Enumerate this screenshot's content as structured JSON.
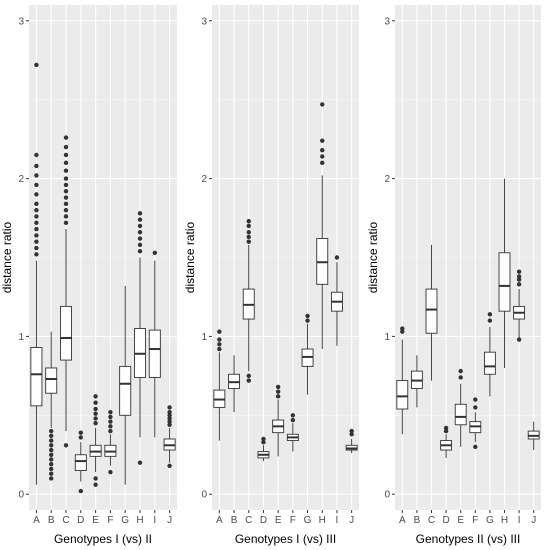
{
  "colors": {
    "panel_bg": "#ebebeb",
    "grid_major": "#ffffff",
    "grid_minor": "#f5f5f5",
    "box_fill": "#ffffff",
    "box_line": "#333333",
    "outlier": "#333333",
    "tick_text": "#4d4d4d"
  },
  "chart_data": [
    {
      "type": "boxplot",
      "title": "",
      "xlabel": "Genotypes I (vs) II",
      "ylabel": "distance ratio",
      "ylim": [
        -0.1,
        3.1
      ],
      "yticks": [
        0,
        1,
        2,
        3
      ],
      "grid": true,
      "categories": [
        "A",
        "B",
        "C",
        "D",
        "E",
        "F",
        "G",
        "H",
        "I",
        "J"
      ],
      "boxes": [
        {
          "category": "A",
          "whisker_low": 0.06,
          "q1": 0.56,
          "median": 0.76,
          "q3": 0.93,
          "whisker_high": 1.48,
          "outliers": [
            1.52,
            1.56,
            1.6,
            1.64,
            1.68,
            1.72,
            1.76,
            1.8,
            1.84,
            1.9,
            1.96,
            2.02,
            2.08,
            2.15,
            2.72
          ]
        },
        {
          "category": "B",
          "whisker_low": 0.42,
          "q1": 0.64,
          "median": 0.73,
          "q3": 0.8,
          "whisker_high": 1.03,
          "outliers": [
            0.1,
            0.13,
            0.16,
            0.19,
            0.22,
            0.25,
            0.28,
            0.31,
            0.34,
            0.37,
            0.4
          ]
        },
        {
          "category": "C",
          "whisker_low": 0.4,
          "q1": 0.85,
          "median": 0.99,
          "q3": 1.19,
          "whisker_high": 1.68,
          "outliers": [
            0.31,
            1.72,
            1.76,
            1.8,
            1.84,
            1.88,
            1.92,
            1.96,
            2.0,
            2.05,
            2.1,
            2.15,
            2.2,
            2.26
          ]
        },
        {
          "category": "D",
          "whisker_low": 0.08,
          "q1": 0.15,
          "median": 0.21,
          "q3": 0.25,
          "whisker_high": 0.33,
          "outliers": [
            0.02,
            0.36,
            0.39
          ]
        },
        {
          "category": "E",
          "whisker_low": 0.14,
          "q1": 0.24,
          "median": 0.27,
          "q3": 0.31,
          "whisker_high": 0.42,
          "outliers": [
            0.06,
            0.1,
            0.45,
            0.48,
            0.51,
            0.54,
            0.58,
            0.62
          ]
        },
        {
          "category": "F",
          "whisker_low": 0.18,
          "q1": 0.24,
          "median": 0.27,
          "q3": 0.31,
          "whisker_high": 0.38,
          "outliers": [
            0.14,
            0.4,
            0.43,
            0.46,
            0.49,
            0.52
          ]
        },
        {
          "category": "G",
          "whisker_low": 0.06,
          "q1": 0.5,
          "median": 0.7,
          "q3": 0.81,
          "whisker_high": 1.32,
          "outliers": []
        },
        {
          "category": "H",
          "whisker_low": 0.36,
          "q1": 0.74,
          "median": 0.89,
          "q3": 1.05,
          "whisker_high": 1.5,
          "outliers": [
            0.2,
            1.54,
            1.58,
            1.62,
            1.66,
            1.7,
            1.74,
            1.78
          ]
        },
        {
          "category": "I",
          "whisker_low": 0.36,
          "q1": 0.74,
          "median": 0.92,
          "q3": 1.04,
          "whisker_high": 1.48,
          "outliers": [
            1.53
          ]
        },
        {
          "category": "J",
          "whisker_low": 0.2,
          "q1": 0.28,
          "median": 0.31,
          "q3": 0.35,
          "whisker_high": 0.42,
          "outliers": [
            0.18,
            0.44,
            0.46,
            0.48,
            0.5,
            0.52,
            0.55
          ]
        }
      ]
    },
    {
      "type": "boxplot",
      "title": "",
      "xlabel": "Genotypes I (vs) III",
      "ylabel": "distance ratio",
      "ylim": [
        -0.1,
        3.1
      ],
      "yticks": [
        0,
        1,
        2,
        3
      ],
      "grid": true,
      "categories": [
        "A",
        "B",
        "C",
        "D",
        "E",
        "F",
        "G",
        "H",
        "I",
        "J"
      ],
      "boxes": [
        {
          "category": "A",
          "whisker_low": 0.34,
          "q1": 0.55,
          "median": 0.6,
          "q3": 0.66,
          "whisker_high": 0.9,
          "outliers": [
            0.92,
            0.95,
            0.98,
            1.03
          ]
        },
        {
          "category": "B",
          "whisker_low": 0.52,
          "q1": 0.67,
          "median": 0.71,
          "q3": 0.76,
          "whisker_high": 0.88,
          "outliers": []
        },
        {
          "category": "C",
          "whisker_low": 0.78,
          "q1": 1.11,
          "median": 1.2,
          "q3": 1.3,
          "whisker_high": 1.58,
          "outliers": [
            0.72,
            0.75,
            1.6,
            1.63,
            1.66,
            1.7,
            1.73
          ]
        },
        {
          "category": "D",
          "whisker_low": 0.21,
          "q1": 0.23,
          "median": 0.25,
          "q3": 0.27,
          "whisker_high": 0.31,
          "outliers": [
            0.33,
            0.35
          ]
        },
        {
          "category": "E",
          "whisker_low": 0.24,
          "q1": 0.39,
          "median": 0.43,
          "q3": 0.47,
          "whisker_high": 0.6,
          "outliers": [
            0.62,
            0.65,
            0.68
          ]
        },
        {
          "category": "F",
          "whisker_low": 0.27,
          "q1": 0.34,
          "median": 0.36,
          "q3": 0.38,
          "whisker_high": 0.45,
          "outliers": [
            0.47,
            0.5
          ]
        },
        {
          "category": "G",
          "whisker_low": 0.63,
          "q1": 0.81,
          "median": 0.87,
          "q3": 0.92,
          "whisker_high": 1.08,
          "outliers": [
            1.1,
            1.13
          ]
        },
        {
          "category": "H",
          "whisker_low": 0.92,
          "q1": 1.33,
          "median": 1.47,
          "q3": 1.62,
          "whisker_high": 2.02,
          "outliers": [
            2.1,
            2.14,
            2.18,
            2.24,
            2.47
          ]
        },
        {
          "category": "I",
          "whisker_low": 0.94,
          "q1": 1.16,
          "median": 1.22,
          "q3": 1.28,
          "whisker_high": 1.47,
          "outliers": [
            1.5
          ]
        },
        {
          "category": "J",
          "whisker_low": 0.26,
          "q1": 0.28,
          "median": 0.29,
          "q3": 0.31,
          "whisker_high": 0.35,
          "outliers": [
            0.38,
            0.4
          ]
        }
      ]
    },
    {
      "type": "boxplot",
      "title": "",
      "xlabel": "Genotypes II (vs) III",
      "ylabel": "distance ratio",
      "ylim": [
        -0.1,
        3.1
      ],
      "yticks": [
        0,
        1,
        2,
        3
      ],
      "grid": true,
      "categories": [
        "A",
        "B",
        "C",
        "D",
        "E",
        "F",
        "G",
        "H",
        "I",
        "J"
      ],
      "boxes": [
        {
          "category": "A",
          "whisker_low": 0.38,
          "q1": 0.54,
          "median": 0.62,
          "q3": 0.72,
          "whisker_high": 0.98,
          "outliers": [
            1.03,
            1.05
          ]
        },
        {
          "category": "B",
          "whisker_low": 0.55,
          "q1": 0.67,
          "median": 0.72,
          "q3": 0.78,
          "whisker_high": 0.88,
          "outliers": []
        },
        {
          "category": "C",
          "whisker_low": 0.72,
          "q1": 1.02,
          "median": 1.17,
          "q3": 1.3,
          "whisker_high": 1.58,
          "outliers": []
        },
        {
          "category": "D",
          "whisker_low": 0.23,
          "q1": 0.28,
          "median": 0.31,
          "q3": 0.34,
          "whisker_high": 0.38,
          "outliers": [
            0.4,
            0.42
          ]
        },
        {
          "category": "E",
          "whisker_low": 0.3,
          "q1": 0.44,
          "median": 0.49,
          "q3": 0.57,
          "whisker_high": 0.7,
          "outliers": [
            0.74,
            0.78
          ]
        },
        {
          "category": "F",
          "whisker_low": 0.33,
          "q1": 0.39,
          "median": 0.43,
          "q3": 0.46,
          "whisker_high": 0.52,
          "outliers": [
            0.3,
            0.55,
            0.6
          ]
        },
        {
          "category": "G",
          "whisker_low": 0.62,
          "q1": 0.76,
          "median": 0.81,
          "q3": 0.9,
          "whisker_high": 1.06,
          "outliers": [
            1.1,
            1.14
          ]
        },
        {
          "category": "H",
          "whisker_low": 0.8,
          "q1": 1.16,
          "median": 1.32,
          "q3": 1.53,
          "whisker_high": 2.0,
          "outliers": []
        },
        {
          "category": "I",
          "whisker_low": 0.98,
          "q1": 1.11,
          "median": 1.15,
          "q3": 1.19,
          "whisker_high": 1.3,
          "outliers": [
            0.98,
            1.33,
            1.36,
            1.38,
            1.41
          ]
        },
        {
          "category": "J",
          "whisker_low": 0.28,
          "q1": 0.35,
          "median": 0.37,
          "q3": 0.4,
          "whisker_high": 0.46,
          "outliers": []
        }
      ]
    }
  ]
}
